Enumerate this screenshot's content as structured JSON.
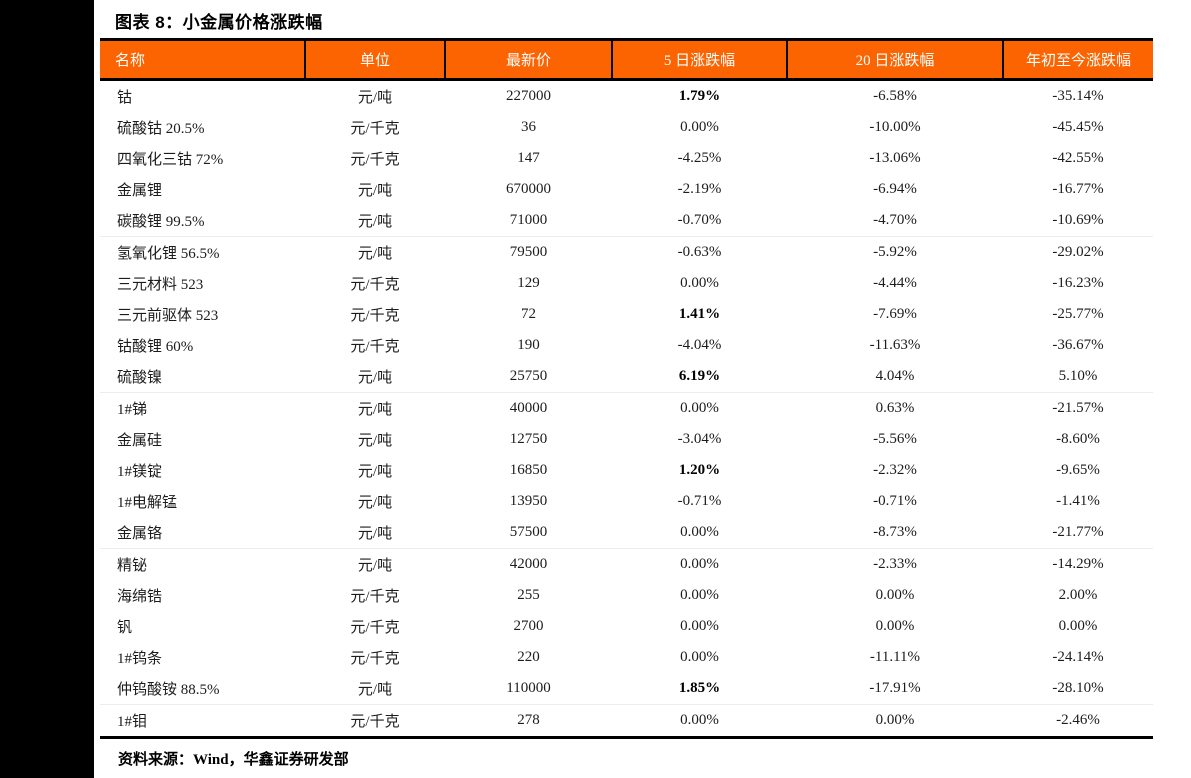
{
  "title": "图表 8：小金属价格涨跌幅",
  "source_note": "资料来源：Wind，华鑫证券研发部",
  "colors": {
    "header_bg": "#FB6400",
    "header_text": "#FFFFFF",
    "border": "#000000",
    "body_text": "#1C1C1C"
  },
  "table": {
    "columns": [
      "名称",
      "单位",
      "最新价",
      "5 日涨跌幅",
      "20 日涨跌幅",
      "年初至今涨跌幅"
    ],
    "rows": [
      {
        "name": "钴",
        "unit": "元/吨",
        "price": "227000",
        "chg5": "1.79%",
        "bold5": true,
        "chg20": "-6.58%",
        "ytd": "-35.14%"
      },
      {
        "name": "硫酸钴 20.5%",
        "unit": "元/千克",
        "price": "36",
        "chg5": "0.00%",
        "bold5": false,
        "chg20": "-10.00%",
        "ytd": "-45.45%"
      },
      {
        "name": "四氧化三钴 72%",
        "unit": "元/千克",
        "price": "147",
        "chg5": "-4.25%",
        "bold5": false,
        "chg20": "-13.06%",
        "ytd": "-42.55%"
      },
      {
        "name": "金属锂",
        "unit": "元/吨",
        "price": "670000",
        "chg5": "-2.19%",
        "bold5": false,
        "chg20": "-6.94%",
        "ytd": "-16.77%"
      },
      {
        "name": "碳酸锂 99.5%",
        "unit": "元/吨",
        "price": "71000",
        "chg5": "-0.70%",
        "bold5": false,
        "chg20": "-4.70%",
        "ytd": "-10.69%"
      },
      {
        "name": "氢氧化锂 56.5%",
        "unit": "元/吨",
        "price": "79500",
        "chg5": "-0.63%",
        "bold5": false,
        "chg20": "-5.92%",
        "ytd": "-29.02%"
      },
      {
        "name": "三元材料 523",
        "unit": "元/千克",
        "price": "129",
        "chg5": "0.00%",
        "bold5": false,
        "chg20": "-4.44%",
        "ytd": "-16.23%"
      },
      {
        "name": "三元前驱体 523",
        "unit": "元/千克",
        "price": "72",
        "chg5": "1.41%",
        "bold5": true,
        "chg20": "-7.69%",
        "ytd": "-25.77%"
      },
      {
        "name": "钴酸锂 60%",
        "unit": "元/千克",
        "price": "190",
        "chg5": "-4.04%",
        "bold5": false,
        "chg20": "-11.63%",
        "ytd": "-36.67%"
      },
      {
        "name": "硫酸镍",
        "unit": "元/吨",
        "price": "25750",
        "chg5": "6.19%",
        "bold5": true,
        "chg20": "4.04%",
        "ytd": "5.10%"
      },
      {
        "name": "1#锑",
        "unit": "元/吨",
        "price": "40000",
        "chg5": "0.00%",
        "bold5": false,
        "chg20": "0.63%",
        "ytd": "-21.57%"
      },
      {
        "name": "金属硅",
        "unit": "元/吨",
        "price": "12750",
        "chg5": "-3.04%",
        "bold5": false,
        "chg20": "-5.56%",
        "ytd": "-8.60%"
      },
      {
        "name": "1#镁锭",
        "unit": "元/吨",
        "price": "16850",
        "chg5": "1.20%",
        "bold5": true,
        "chg20": "-2.32%",
        "ytd": "-9.65%"
      },
      {
        "name": "1#电解锰",
        "unit": "元/吨",
        "price": "13950",
        "chg5": "-0.71%",
        "bold5": false,
        "chg20": "-0.71%",
        "ytd": "-1.41%"
      },
      {
        "name": "金属铬",
        "unit": "元/吨",
        "price": "57500",
        "chg5": "0.00%",
        "bold5": false,
        "chg20": "-8.73%",
        "ytd": "-21.77%"
      },
      {
        "name": "精铋",
        "unit": "元/吨",
        "price": "42000",
        "chg5": "0.00%",
        "bold5": false,
        "chg20": "-2.33%",
        "ytd": "-14.29%"
      },
      {
        "name": "海绵锆",
        "unit": "元/千克",
        "price": "255",
        "chg5": "0.00%",
        "bold5": false,
        "chg20": "0.00%",
        "ytd": "2.00%"
      },
      {
        "name": "钒",
        "unit": "元/千克",
        "price": "2700",
        "chg5": "0.00%",
        "bold5": false,
        "chg20": "0.00%",
        "ytd": "0.00%"
      },
      {
        "name": "1#钨条",
        "unit": "元/千克",
        "price": "220",
        "chg5": "0.00%",
        "bold5": false,
        "chg20": "-11.11%",
        "ytd": "-24.14%"
      },
      {
        "name": "仲钨酸铵 88.5%",
        "unit": "元/吨",
        "price": "110000",
        "chg5": "1.85%",
        "bold5": true,
        "chg20": "-17.91%",
        "ytd": "-28.10%"
      },
      {
        "name": "1#钼",
        "unit": "元/千克",
        "price": "278",
        "chg5": "0.00%",
        "bold5": false,
        "chg20": "0.00%",
        "ytd": "-2.46%"
      }
    ]
  }
}
